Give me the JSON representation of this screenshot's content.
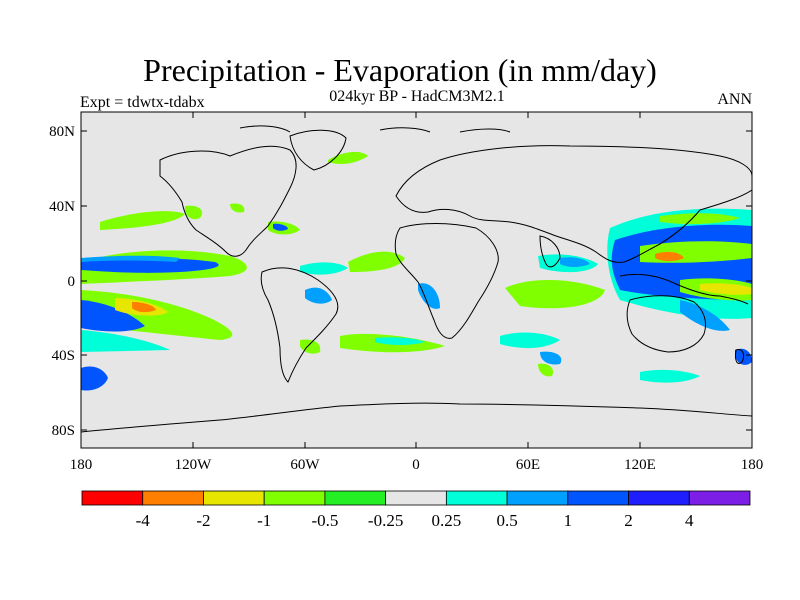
{
  "title": "Precipitation - Evaporation (in mm/day)",
  "subtitle": "024kyr BP - HadCM3M2.1",
  "experiment_label": "Expt = tdwtx-tdabx",
  "season_label": "ANN",
  "lat_ticks": [
    "80N",
    "40N",
    "0",
    "40S",
    "80S"
  ],
  "lon_ticks": [
    "180",
    "120W",
    "60W",
    "0",
    "60E",
    "120E",
    "180"
  ],
  "colorbar": {
    "colors": [
      "#ff0000",
      "#ff7f00",
      "#e6e600",
      "#80ff00",
      "#24ef24",
      "#e6e6e6",
      "#00ffd9",
      "#00a0ff",
      "#0055ff",
      "#1e1eff",
      "#7d1ee6"
    ],
    "labels": [
      "-4",
      "-2",
      "-1",
      "-0.5",
      "-0.25",
      "0.25",
      "0.5",
      "1",
      "2",
      "4"
    ]
  },
  "background_color": "#e6e6e6"
}
